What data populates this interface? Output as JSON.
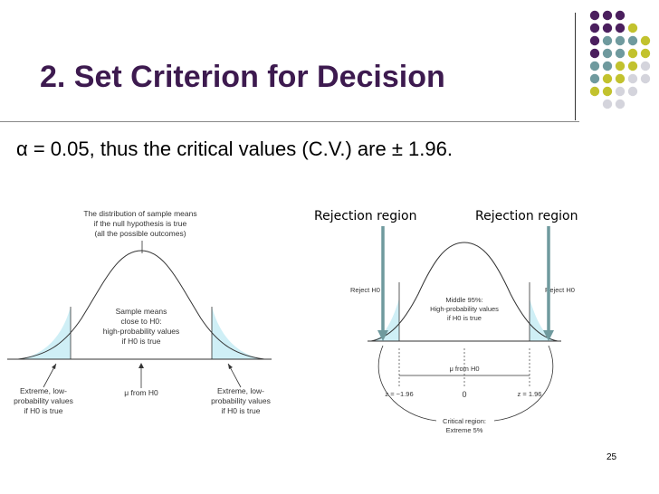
{
  "slide": {
    "title": "2. Set Criterion for Decision",
    "statement": "α = 0.05, thus the critical values (C.V.) are ± 1.96.",
    "page_number": "25"
  },
  "theme": {
    "purple": "#4b1f5e",
    "teal": "#6f9a9e",
    "olive": "#c2c22e",
    "grey": "#d4d4dc",
    "title_color": "#3d1a4f",
    "shade": "#cfeff6",
    "arrow": "#5e8f95"
  },
  "left_figure": {
    "caption_lines": [
      "The distribution of sample means",
      "if the null hypothesis is true",
      "(all the possible outcomes)"
    ],
    "center_lines": [
      "Sample means",
      "close to H0:",
      "high-probability values",
      "if H0 is true"
    ],
    "left_tail_lines": [
      "Extreme, low-",
      "probability values",
      "if H0 is true"
    ],
    "mu_label": "μ from H0",
    "right_tail_lines": [
      "Extreme, low-",
      "probability values",
      "if H0 is true"
    ]
  },
  "right_figure": {
    "rejection_left": "Rejection region",
    "rejection_right": "Rejection region",
    "reject_left": "Reject H0",
    "reject_right": "Reject H0",
    "middle_lines": [
      "Middle 95%:",
      "High-probability values",
      "if H0 is true"
    ],
    "mu_label": "μ from H0",
    "z_left": "z = −1.96",
    "z_center": "0",
    "z_right": "z = 1.96",
    "critical_lines": [
      "Critical region:",
      "Extreme 5%"
    ]
  }
}
